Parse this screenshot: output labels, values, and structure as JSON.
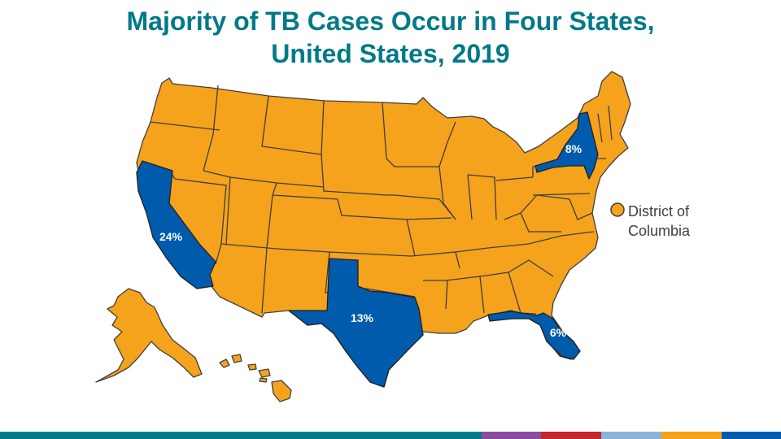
{
  "title": {
    "line1": "Majority of TB Cases Occur in Four States,",
    "line2": "United States, 2019"
  },
  "highlighted_states": [
    {
      "state": "California",
      "label": "24%"
    },
    {
      "state": "Texas",
      "label": "13%"
    },
    {
      "state": "New York",
      "label": "8%"
    },
    {
      "state": "Florida",
      "label": "6%"
    }
  ],
  "dc_label": {
    "line1": "District of",
    "line2": "Columbia"
  },
  "colors": {
    "other_states": "#f5a21c",
    "highlighted_states": "#005bac",
    "title": "#007a87"
  },
  "footer_colors": [
    "#007a87",
    "#8a4c9e",
    "#c1272d",
    "#8db3d9",
    "#f5a21c",
    "#005bac"
  ]
}
